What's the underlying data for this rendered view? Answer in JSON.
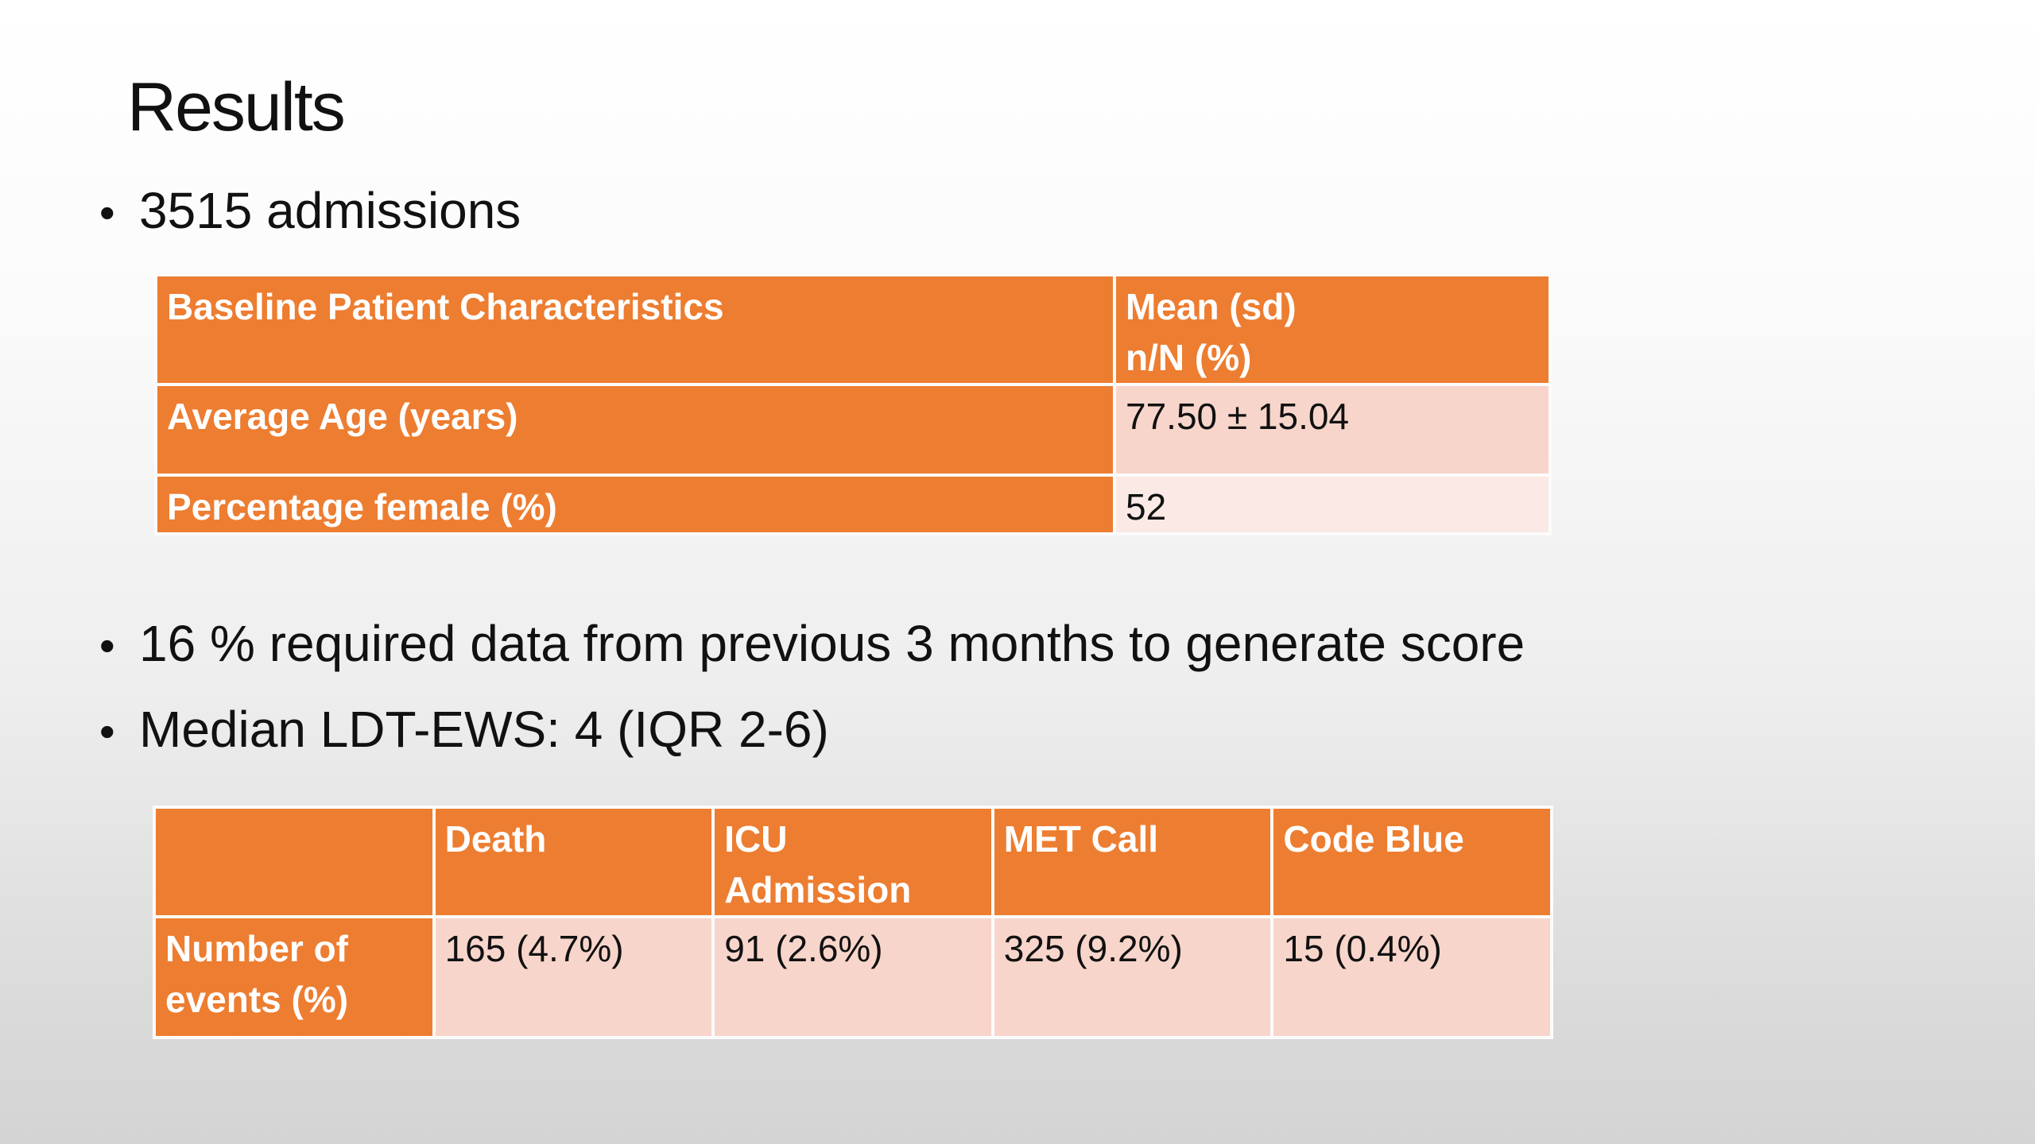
{
  "slide": {
    "title": "Results",
    "bullets": [
      "3515 admissions",
      "16 % required data from previous 3 months to generate score",
      "Median LDT-EWS: 4 (IQR 2-6)"
    ],
    "bullet_symbol": "•"
  },
  "table1": {
    "header": {
      "col1": "Baseline Patient Characteristics",
      "col2_line1": "Mean (sd)",
      "col2_line2": "n/N (%)"
    },
    "rows": [
      {
        "label": "Average Age (years)",
        "value": "77.50 ± 15.04"
      },
      {
        "label": "Percentage female (%)",
        "value": "52"
      }
    ]
  },
  "table2": {
    "headers": [
      "",
      "Death",
      "ICU Admission",
      "MET Call",
      "Code Blue"
    ],
    "row": {
      "label_line1": "Number of",
      "label_line2": "events (%)",
      "values": [
        "165 (4.7%)",
        "91 (2.6%)",
        "325 (9.2%)",
        "15 (0.4%)"
      ]
    }
  },
  "colors": {
    "header_orange": "#ed7d31",
    "cell_light": "#f8d5cb",
    "cell_lighter": "#fbe9e5"
  }
}
